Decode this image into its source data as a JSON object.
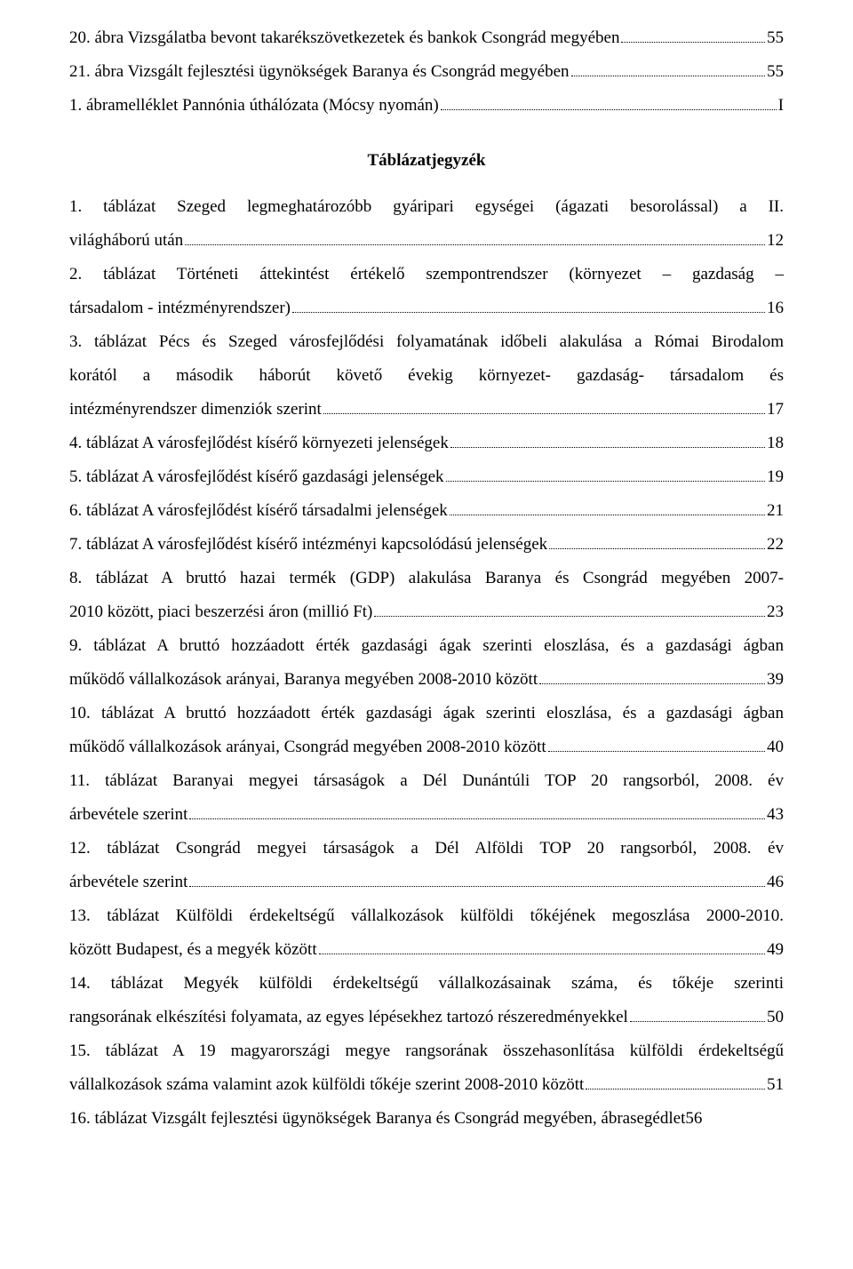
{
  "figures": [
    {
      "num": "20.",
      "text": "ábra Vizsgálatba bevont takarékszövetkezetek és bankok Csongrád megyében",
      "page": "55"
    },
    {
      "num": "21.",
      "text": "ábra Vizsgált fejlesztési ügynökségek Baranya és Csongrád megyében",
      "page": "55"
    },
    {
      "num": "1.",
      "text": "ábramelléklet Pannónia úthálózata (Mócsy nyomán)",
      "page": "I"
    }
  ],
  "section_title": "Táblázatjegyzék",
  "tables": [
    {
      "lines": [
        "1. táblázat Szeged legmeghatározóbb gyáripari egységei (ágazati besorolással) a II.",
        "világháború után"
      ],
      "page": "12"
    },
    {
      "lines": [
        "2. táblázat Történeti áttekintést értékelő szempontrendszer (környezet – gazdaság –",
        "társadalom - intézményrendszer)"
      ],
      "page": "16"
    },
    {
      "lines": [
        "3. táblázat Pécs és Szeged városfejlődési folyamatának időbeli alakulása a Római Birodalom",
        "korától a második háborút követő évekig környezet- gazdaság- társadalom és",
        "intézményrendszer dimenziók szerint"
      ],
      "page": "17"
    },
    {
      "lines": [
        "4. táblázat A városfejlődést kísérő környezeti jelenségek"
      ],
      "page": "18"
    },
    {
      "lines": [
        "5. táblázat A városfejlődést kísérő gazdasági jelenségek"
      ],
      "page": "19"
    },
    {
      "lines": [
        "6. táblázat A városfejlődést kísérő társadalmi jelenségek"
      ],
      "page": "21"
    },
    {
      "lines": [
        "7. táblázat A városfejlődést kísérő intézményi kapcsolódású jelenségek"
      ],
      "page": "22"
    },
    {
      "lines": [
        "8. táblázat A bruttó hazai termék (GDP) alakulása Baranya és Csongrád megyében 2007-",
        "2010 között, piaci beszerzési áron (millió Ft)"
      ],
      "page": "23"
    },
    {
      "lines": [
        "9. táblázat A bruttó hozzáadott érték gazdasági ágak szerinti eloszlása, és a gazdasági ágban",
        "működő vállalkozások arányai, Baranya megyében 2008-2010 között"
      ],
      "page": "39"
    },
    {
      "lines": [
        "10. táblázat A bruttó hozzáadott érték gazdasági ágak szerinti eloszlása, és a gazdasági ágban",
        "működő vállalkozások arányai, Csongrád megyében 2008-2010 között"
      ],
      "page": "40"
    },
    {
      "lines": [
        "11. táblázat Baranyai megyei társaságok a Dél Dunántúli TOP 20 rangsorból, 2008. év",
        "árbevétele szerint"
      ],
      "page": "43"
    },
    {
      "lines": [
        "12. táblázat Csongrád megyei társaságok a Dél Alföldi TOP 20 rangsorból, 2008. év",
        "árbevétele szerint"
      ],
      "page": "46"
    },
    {
      "lines": [
        "13. táblázat Külföldi érdekeltségű vállalkozások külföldi tőkéjének megoszlása 2000-2010.",
        "között Budapest, és a megyék között"
      ],
      "page": "49"
    },
    {
      "lines": [
        "14. táblázat Megyék külföldi érdekeltségű vállalkozásainak száma, és tőkéje szerinti",
        "rangsorának elkészítési folyamata, az egyes lépésekhez tartozó részeredményekkel"
      ],
      "page": "50"
    },
    {
      "lines": [
        "15. táblázat A 19 magyarországi megye rangsorának összehasonlítása külföldi érdekeltségű",
        "vállalkozások száma valamint azok külföldi tőkéje szerint 2008-2010 között"
      ],
      "page": "51"
    },
    {
      "lines": [
        "16. táblázat Vizsgált fejlesztési ügynökségek Baranya és Csongrád megyében, ábrasegédlet"
      ],
      "page": "56",
      "nodots": true
    }
  ],
  "colors": {
    "text": "#000000",
    "bg": "#ffffff"
  }
}
